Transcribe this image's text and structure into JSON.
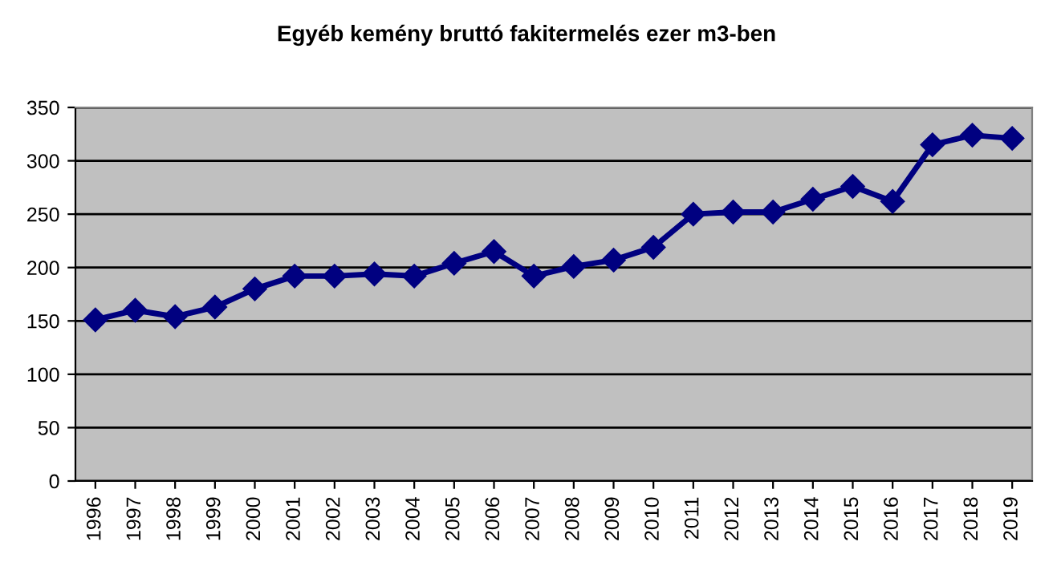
{
  "chart_data": {
    "type": "line",
    "title": "Egyéb kemény bruttó fakitermelés ezer m3-ben",
    "categories": [
      "1996",
      "1997",
      "1998",
      "1999",
      "2000",
      "2001",
      "2002",
      "2003",
      "2004",
      "2005",
      "2006",
      "2007",
      "2008",
      "2009",
      "2010",
      "2011",
      "2012",
      "2013",
      "2014",
      "2015",
      "2016",
      "2017",
      "2018",
      "2019"
    ],
    "series": [
      {
        "color": "#000080",
        "values": [
          151,
          160,
          154,
          163,
          180,
          192,
          192,
          194,
          192,
          204,
          215,
          192,
          201,
          207,
          219,
          250,
          252,
          252,
          264,
          276,
          262,
          315,
          324,
          321
        ]
      }
    ],
    "ylim": [
      0,
      350
    ],
    "yticks": [
      0,
      50,
      100,
      150,
      200,
      250,
      300,
      350
    ],
    "grid": "y",
    "marker": "diamond",
    "line_style": "solid",
    "legend": false
  }
}
